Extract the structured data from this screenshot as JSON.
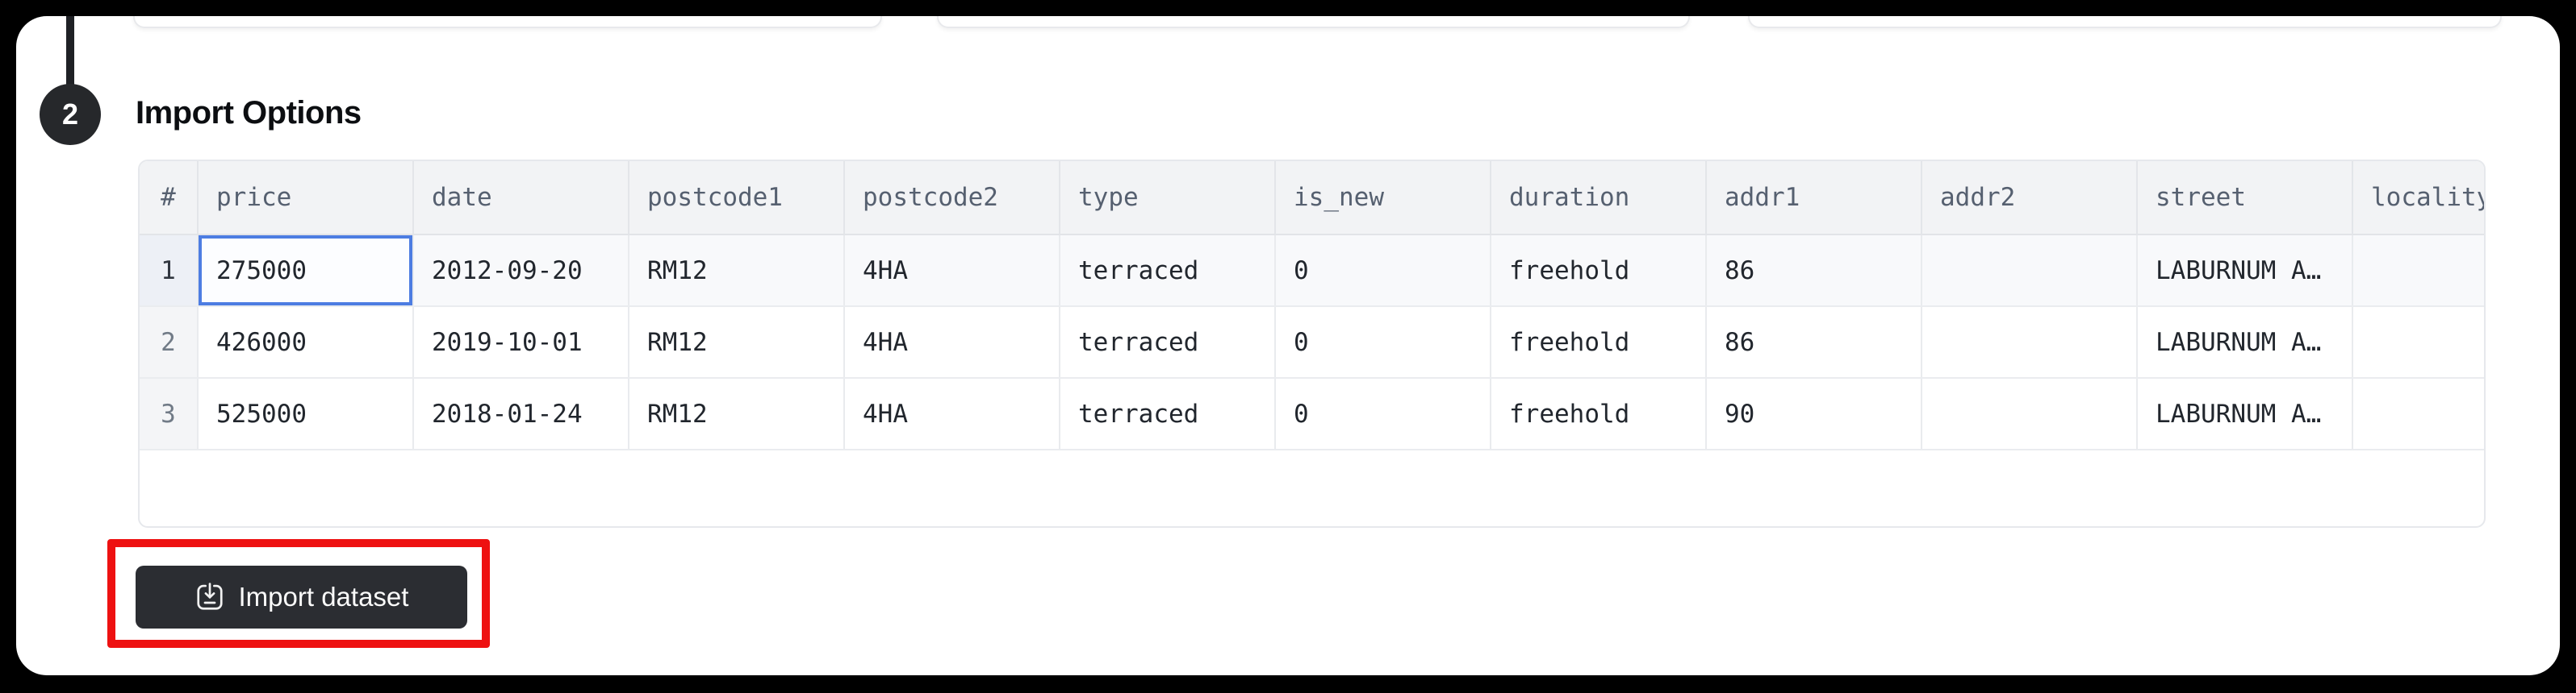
{
  "step_badge": {
    "number": "2"
  },
  "section": {
    "title": "Import Options"
  },
  "table": {
    "row_number_header": "#",
    "columns": [
      "price",
      "date",
      "postcode1",
      "postcode2",
      "type",
      "is_new",
      "duration",
      "addr1",
      "addr2",
      "street",
      "locality"
    ],
    "rows": [
      {
        "num": "1",
        "cells": [
          "275000",
          "2012-09-20",
          "RM12",
          "4HA",
          "terraced",
          "0",
          "freehold",
          "86",
          "",
          "LABURNUM A…",
          ""
        ]
      },
      {
        "num": "2",
        "cells": [
          "426000",
          "2019-10-01",
          "RM12",
          "4HA",
          "terraced",
          "0",
          "freehold",
          "86",
          "",
          "LABURNUM A…",
          ""
        ]
      },
      {
        "num": "3",
        "cells": [
          "525000",
          "2018-01-24",
          "RM12",
          "4HA",
          "terraced",
          "0",
          "freehold",
          "90",
          "",
          "LABURNUM A…",
          ""
        ]
      }
    ],
    "selected_cell": {
      "row_index": 0,
      "column": "price",
      "value": "275000"
    }
  },
  "import_button": {
    "label": "Import dataset",
    "icon": "import-download-icon"
  },
  "annotation": {
    "shape": "rectangle",
    "color": "#ee1111",
    "target": "import-dataset-button"
  },
  "colors": {
    "frame_background": "#000000",
    "page_background": "#ffffff",
    "header_background": "#f2f3f5",
    "selected_cell_border": "#4d7de2",
    "button_background": "#2b2d32",
    "annotation_red": "#ee1111",
    "step_badge_background": "#26282b"
  }
}
